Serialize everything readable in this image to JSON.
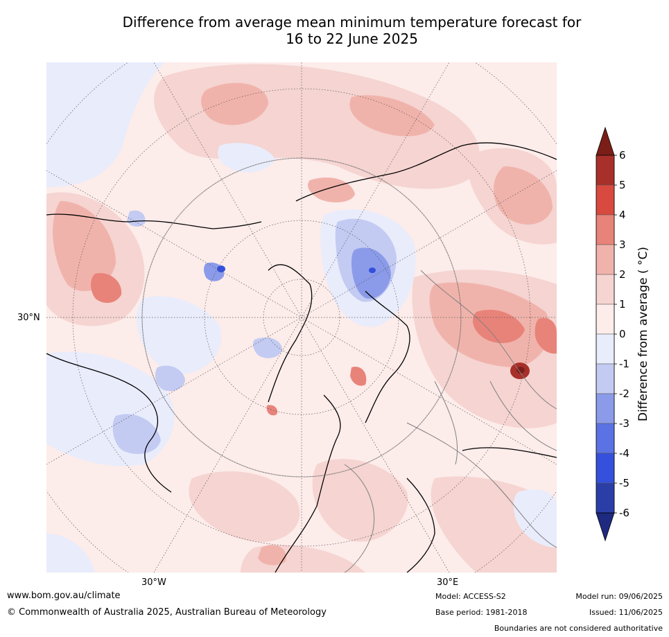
{
  "title_line1": "Difference from average mean minimum temperature forecast for",
  "title_line2": "16 to 22 June 2025",
  "map": {
    "projection": "north polar stereographic",
    "lat_label": "30°N",
    "lon_labels": [
      "30°W",
      "30°E"
    ]
  },
  "colorbar": {
    "label": "Difference from average ( °C)",
    "ticks": [
      "6",
      "5",
      "4",
      "3",
      "2",
      "1",
      "0",
      "-1",
      "-2",
      "-3",
      "-4",
      "-5",
      "-6"
    ],
    "colors_high_to_low": [
      "#7b1e17",
      "#a8302a",
      "#d84a3f",
      "#e8837a",
      "#f0b3ab",
      "#f5d4d1",
      "#fcecea",
      "#e9ecfb",
      "#c3cbf2",
      "#8b9bea",
      "#5a72e3",
      "#3450dc",
      "#2b3ea8",
      "#1e2a80"
    ]
  },
  "footer": {
    "website": "www.bom.gov.au/climate",
    "copyright": "© Commonwealth of Australia 2025, Australian Bureau of Meteorology",
    "model": "Model: ACCESS-S2",
    "base_period": "Base period: 1981-2018",
    "model_run": "Model run: 09/06/2025",
    "issued": "Issued: 11/06/2025",
    "disclaimer": "Boundaries are not considered authoritative"
  }
}
